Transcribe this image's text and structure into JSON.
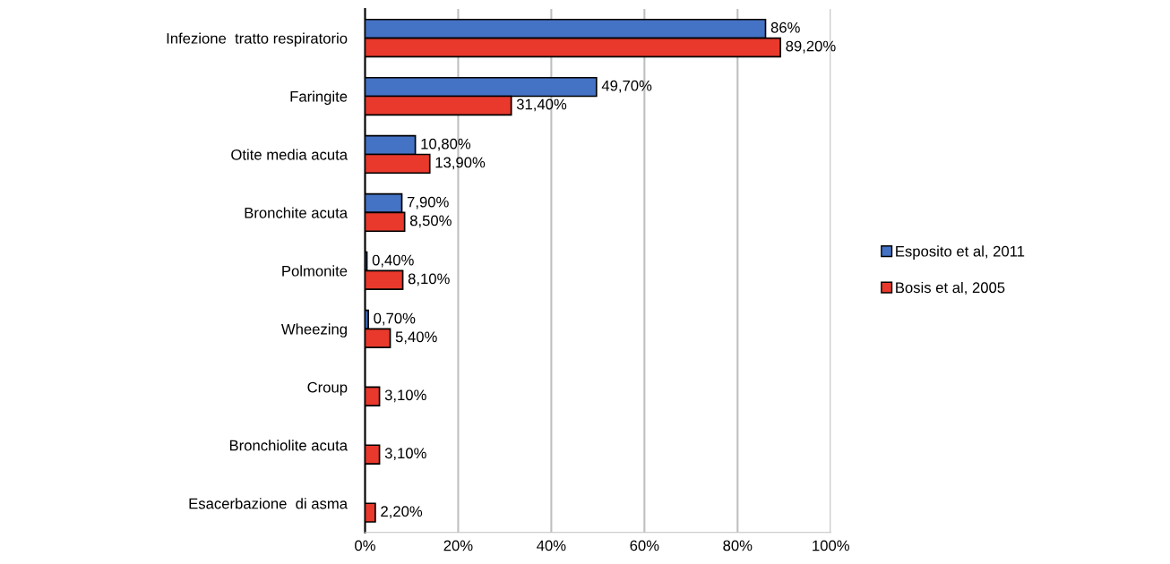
{
  "chart_data": {
    "type": "bar",
    "orientation": "horizontal",
    "categories": [
      "Infezione  tratto respiratorio",
      "Faringite",
      "Otite media acuta",
      "Bronchite acuta",
      "Polmonite",
      "Wheezing",
      "Croup",
      "Bronchiolite acuta",
      "Esacerbazione  di asma"
    ],
    "series": [
      {
        "name": "Esposito et al, 2011",
        "color": "#4472c4",
        "values": [
          86,
          49.7,
          10.8,
          7.9,
          0.4,
          0.7,
          null,
          null,
          null
        ],
        "value_labels": [
          "86%",
          "49,70%",
          "10,80%",
          "7,90%",
          "0,40%",
          "0,70%",
          null,
          null,
          null
        ]
      },
      {
        "name": "Bosis et al, 2005",
        "color": "#e8392c",
        "values": [
          89.2,
          31.4,
          13.9,
          8.5,
          8.1,
          5.4,
          3.1,
          3.1,
          2.2
        ],
        "value_labels": [
          "89,20%",
          "31,40%",
          "13,90%",
          "8,50%",
          "8,10%",
          "5,40%",
          "3,10%",
          "3,10%",
          "2,20%"
        ]
      }
    ],
    "xlim": [
      0,
      100
    ],
    "xticks": [
      {
        "value": 0,
        "label": "0%"
      },
      {
        "value": 20,
        "label": "20%"
      },
      {
        "value": 40,
        "label": "40%"
      },
      {
        "value": 60,
        "label": "60%"
      },
      {
        "value": 80,
        "label": "80%"
      },
      {
        "value": 100,
        "label": "100%"
      }
    ],
    "grid": "x",
    "legend": "right"
  }
}
